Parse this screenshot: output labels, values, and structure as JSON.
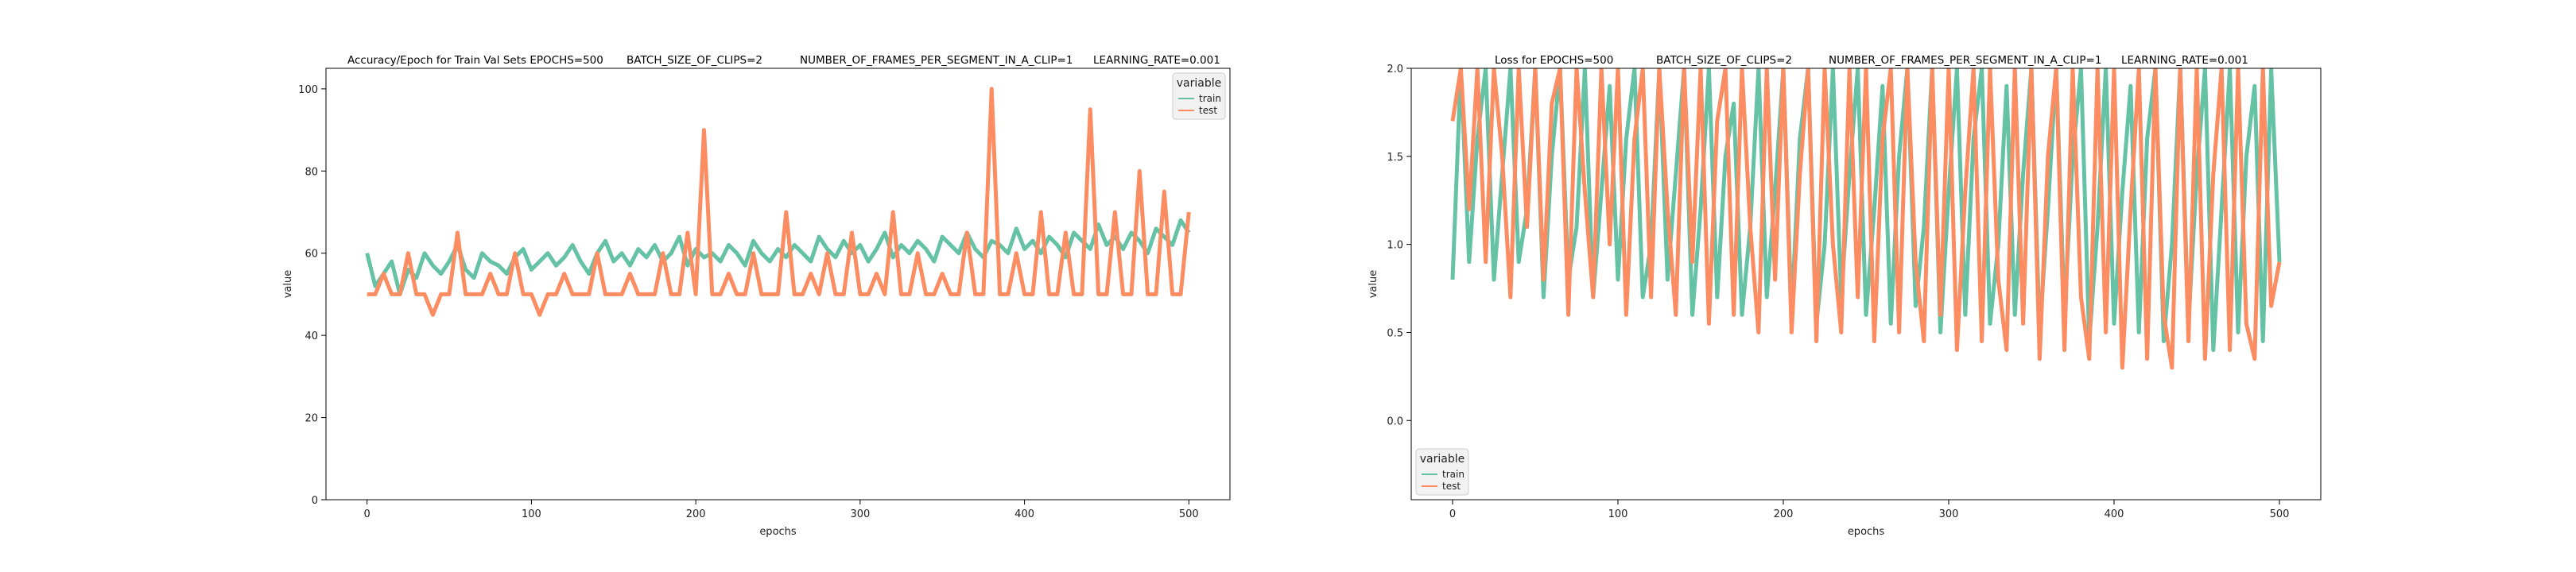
{
  "chart_data": [
    {
      "type": "line",
      "titles": [
        "Accuracy/Epoch for Train Val Sets EPOCHS=500",
        "BATCH_SIZE_OF_CLIPS=2",
        "NUMBER_OF_FRAMES_PER_SEGMENT_IN_A_CLIP=1",
        "LEARNING_RATE=0.001"
      ],
      "xlabel": "epochs",
      "ylabel": "value",
      "xlim": [
        -25,
        525
      ],
      "ylim": [
        0,
        105
      ],
      "xticks": [
        0,
        100,
        200,
        300,
        400,
        500
      ],
      "yticks": [
        0,
        20,
        40,
        60,
        80,
        100
      ],
      "grid": false,
      "legend": {
        "title": "variable",
        "position": "top-right"
      },
      "series": [
        {
          "name": "train",
          "color": "#66c2a5",
          "x_start": 0,
          "x_step": 5,
          "values": [
            60,
            52,
            55,
            58,
            50,
            56,
            54,
            60,
            57,
            55,
            58,
            62,
            56,
            54,
            60,
            58,
            57,
            55,
            59,
            61,
            56,
            58,
            60,
            57,
            59,
            62,
            58,
            55,
            60,
            63,
            58,
            60,
            57,
            61,
            59,
            62,
            58,
            60,
            64,
            57,
            61,
            59,
            60,
            58,
            62,
            60,
            57,
            63,
            60,
            58,
            61,
            59,
            62,
            60,
            58,
            64,
            61,
            59,
            63,
            60,
            62,
            58,
            61,
            65,
            59,
            62,
            60,
            63,
            61,
            58,
            64,
            62,
            60,
            65,
            61,
            59,
            63,
            62,
            60,
            66,
            61,
            63,
            60,
            64,
            62,
            59,
            65,
            63,
            61,
            67,
            62,
            64,
            61,
            65,
            63,
            60,
            66,
            64,
            62,
            68,
            65
          ]
        },
        {
          "name": "test",
          "color": "#fc8d62",
          "x_start": 0,
          "x_step": 5,
          "values": [
            50,
            50,
            55,
            50,
            50,
            60,
            50,
            50,
            45,
            50,
            50,
            65,
            50,
            50,
            50,
            55,
            50,
            50,
            60,
            50,
            50,
            45,
            50,
            50,
            55,
            50,
            50,
            50,
            60,
            50,
            50,
            50,
            55,
            50,
            50,
            50,
            60,
            50,
            50,
            65,
            50,
            90,
            50,
            50,
            55,
            50,
            50,
            60,
            50,
            50,
            50,
            70,
            50,
            50,
            55,
            50,
            60,
            50,
            50,
            65,
            50,
            50,
            55,
            50,
            70,
            50,
            50,
            60,
            50,
            50,
            55,
            50,
            50,
            65,
            50,
            50,
            100,
            50,
            50,
            60,
            50,
            50,
            70,
            50,
            50,
            65,
            50,
            50,
            95,
            50,
            50,
            70,
            50,
            50,
            80,
            50,
            50,
            75,
            50,
            50,
            70
          ]
        }
      ]
    },
    {
      "type": "line",
      "titles": [
        "Loss for  EPOCHS=500",
        "BATCH_SIZE_OF_CLIPS=2",
        "NUMBER_OF_FRAMES_PER_SEGMENT_IN_A_CLIP=1",
        "LEARNING_RATE=0.001"
      ],
      "xlabel": "epochs",
      "ylabel": "value",
      "xlim": [
        -25,
        525
      ],
      "ylim": [
        -0.45,
        2.0
      ],
      "xticks": [
        0,
        100,
        200,
        300,
        400,
        500
      ],
      "yticks": [
        0.0,
        0.5,
        1.0,
        1.5,
        2.0
      ],
      "ytick_labels": [
        "0.0",
        "0.5",
        "1.0",
        "1.5",
        "2.0"
      ],
      "grid": false,
      "legend": {
        "title": "variable",
        "position": "bottom-left"
      },
      "series": [
        {
          "name": "train",
          "color": "#66c2a5",
          "x_start": 0,
          "x_step": 5,
          "values": [
            0.8,
            2.0,
            0.9,
            1.6,
            2.0,
            0.8,
            1.4,
            2.0,
            0.9,
            1.2,
            2.0,
            0.7,
            1.5,
            2.0,
            0.8,
            1.1,
            2.0,
            0.7,
            1.3,
            1.9,
            0.8,
            1.6,
            2.0,
            0.7,
            1.0,
            2.0,
            0.8,
            1.4,
            2.0,
            0.6,
            1.2,
            2.0,
            0.7,
            1.5,
            1.8,
            0.6,
            1.1,
            2.0,
            0.7,
            1.3,
            2.0,
            0.6,
            1.6,
            2.0,
            0.55,
            1.0,
            2.0,
            0.7,
            1.4,
            2.0,
            0.6,
            1.2,
            1.9,
            0.55,
            1.5,
            2.0,
            0.65,
            1.1,
            2.0,
            0.5,
            1.3,
            2.0,
            0.6,
            1.6,
            2.0,
            0.55,
            1.0,
            1.9,
            0.6,
            1.4,
            2.0,
            0.5,
            1.2,
            2.0,
            0.6,
            1.5,
            2.0,
            0.45,
            1.1,
            2.0,
            0.55,
            1.3,
            1.9,
            0.5,
            1.6,
            2.0,
            0.45,
            1.0,
            2.0,
            0.55,
            1.4,
            2.0,
            0.4,
            1.2,
            2.0,
            0.5,
            1.5,
            1.9,
            0.45,
            2.0,
            0.9
          ]
        },
        {
          "name": "test",
          "color": "#fc8d62",
          "x_start": 0,
          "x_step": 5,
          "values": [
            1.7,
            2.0,
            1.2,
            2.0,
            0.9,
            2.0,
            1.5,
            0.7,
            2.0,
            1.1,
            2.0,
            0.8,
            1.8,
            2.0,
            0.6,
            2.0,
            1.3,
            0.7,
            2.0,
            1.0,
            2.0,
            0.6,
            1.6,
            2.0,
            0.7,
            2.0,
            1.2,
            0.6,
            2.0,
            0.9,
            2.0,
            0.55,
            1.7,
            2.0,
            0.6,
            2.0,
            1.1,
            0.5,
            2.0,
            0.8,
            2.0,
            0.5,
            1.4,
            2.0,
            0.45,
            2.0,
            1.0,
            0.5,
            2.0,
            0.7,
            2.0,
            0.45,
            1.6,
            2.0,
            0.5,
            2.0,
            0.9,
            0.45,
            2.0,
            0.6,
            2.0,
            0.4,
            1.3,
            2.0,
            0.45,
            2.0,
            0.8,
            0.4,
            2.0,
            0.55,
            2.0,
            0.35,
            1.5,
            2.0,
            0.4,
            2.0,
            0.7,
            0.35,
            2.0,
            0.5,
            2.0,
            0.3,
            1.2,
            2.0,
            0.35,
            2.0,
            0.6,
            0.3,
            2.0,
            0.45,
            2.0,
            0.35,
            1.4,
            2.0,
            0.4,
            2.0,
            0.55,
            0.35,
            2.0,
            0.65,
            0.9
          ]
        }
      ]
    }
  ]
}
